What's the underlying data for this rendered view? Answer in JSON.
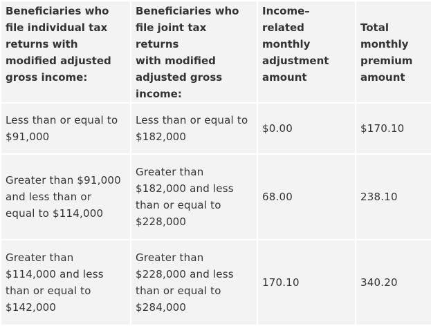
{
  "table": {
    "headers": [
      [
        "Beneficiaries who",
        "file individual tax",
        "returns with",
        "modified adjusted",
        "gross income:"
      ],
      [
        "Beneficiaries who",
        "file joint tax returns",
        "with modified",
        "adjusted gross",
        "income:"
      ],
      [
        "Income–",
        "related",
        "monthly",
        "adjustment",
        "amount"
      ],
      [
        "Total",
        "monthly",
        "premium",
        "amount"
      ]
    ],
    "rows": [
      [
        [
          "Less than or equal to",
          "$91,000"
        ],
        [
          "Less than or equal to",
          "$182,000"
        ],
        [
          "$0.00"
        ],
        [
          "$170.10"
        ]
      ],
      [
        [
          "Greater than $91,000",
          "and less than or",
          "equal to $114,000"
        ],
        [
          "Greater than",
          "$182,000 and less",
          "than or equal to",
          "$228,000"
        ],
        [
          "68.00"
        ],
        [
          "238.10"
        ]
      ],
      [
        [
          "Greater than",
          "$114,000 and less",
          "than or equal to",
          "$142,000"
        ],
        [
          "Greater than",
          "$228,000 and less",
          "than or equal to",
          "$284,000"
        ],
        [
          "170.10"
        ],
        [
          "340.20"
        ]
      ]
    ]
  }
}
